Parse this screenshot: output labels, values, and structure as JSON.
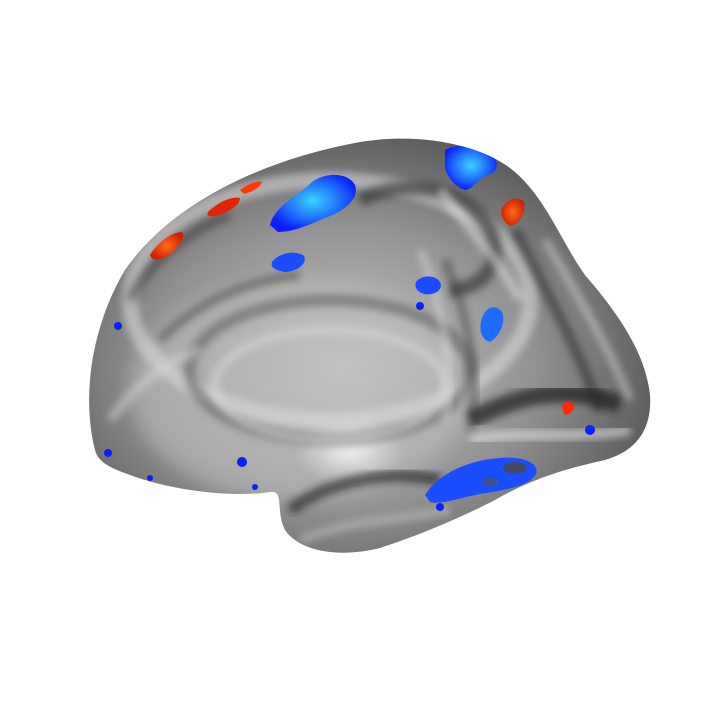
{
  "image": {
    "subject": "brain-surface-medial-view",
    "background_color": "#ffffff",
    "surface_base_color": "#8c8c8c",
    "surface_highlight_color": "#f2f2f2",
    "surface_shadow_color": "#1e1e1e"
  },
  "overlay": {
    "negative_colors": [
      "#0a1fff",
      "#1f6bff",
      "#35c8ff"
    ],
    "positive_colors": [
      "#b51a00",
      "#ff2a00",
      "#ff6a1a"
    ],
    "clusters": [
      {
        "id": "superior-frontal-blue",
        "sign": "negative"
      },
      {
        "id": "precuneus-superior-blue",
        "sign": "negative"
      },
      {
        "id": "superior-parietal-blue",
        "sign": "negative"
      },
      {
        "id": "cingulate-blue",
        "sign": "negative"
      },
      {
        "id": "parietal-small-blue",
        "sign": "negative"
      },
      {
        "id": "occipitotemporal-blue",
        "sign": "negative"
      },
      {
        "id": "frontal-pole-dots-blue",
        "sign": "negative"
      },
      {
        "id": "orbital-dots-blue",
        "sign": "negative"
      },
      {
        "id": "occipital-dot-blue",
        "sign": "negative"
      },
      {
        "id": "frontal-red",
        "sign": "positive"
      },
      {
        "id": "parietal-red",
        "sign": "positive"
      },
      {
        "id": "occipital-red",
        "sign": "positive"
      }
    ]
  }
}
